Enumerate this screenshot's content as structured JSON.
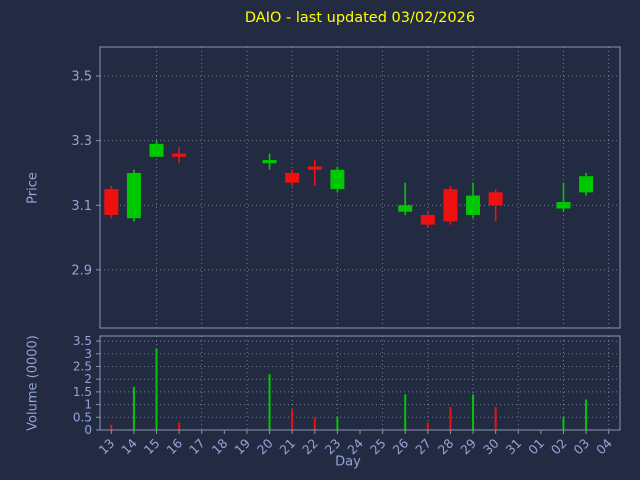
{
  "chart_data": {
    "type": "candlestick",
    "title": "DAIO - last updated 03/02/2026",
    "xlabel": "Day",
    "price_ylabel": "Price",
    "volume_ylabel": "Volume (0000)",
    "price_ylim": [
      2.72,
      3.59
    ],
    "price_ticks": [
      3.5,
      3.3,
      3.1,
      2.9
    ],
    "volume_ylim": [
      0,
      3.7
    ],
    "volume_ticks": [
      3.5,
      3,
      2.5,
      2,
      1.5,
      1,
      0.5,
      0
    ],
    "x_categories": [
      "13",
      "14",
      "15",
      "16",
      "17",
      "18",
      "19",
      "20",
      "21",
      "22",
      "23",
      "24",
      "25",
      "26",
      "27",
      "28",
      "29",
      "30",
      "31",
      "01",
      "02",
      "03",
      "04"
    ],
    "grid": "on",
    "legend_position": "none",
    "colors": {
      "background": "#232b42",
      "title": "#ffff00",
      "axis_text": "#93a4d6",
      "spine": "#8a94ad",
      "grid": "#b9c2d6",
      "up": "#00c800",
      "down": "#f01010"
    },
    "candles": [
      {
        "day": "13",
        "open": 3.15,
        "close": 3.07,
        "high": 3.16,
        "low": 3.06
      },
      {
        "day": "14",
        "open": 3.06,
        "close": 3.2,
        "high": 3.21,
        "low": 3.05
      },
      {
        "day": "15",
        "open": 3.25,
        "close": 3.29,
        "high": 3.3,
        "low": 3.25
      },
      {
        "day": "16",
        "open": 3.26,
        "close": 3.25,
        "high": 3.28,
        "low": 3.23
      },
      {
        "day": "20",
        "open": 3.23,
        "close": 3.24,
        "high": 3.26,
        "low": 3.21
      },
      {
        "day": "21",
        "open": 3.2,
        "close": 3.17,
        "high": 3.21,
        "low": 3.16
      },
      {
        "day": "22",
        "open": 3.22,
        "close": 3.21,
        "high": 3.24,
        "low": 3.16
      },
      {
        "day": "23",
        "open": 3.15,
        "close": 3.21,
        "high": 3.22,
        "low": 3.14
      },
      {
        "day": "26",
        "open": 3.08,
        "close": 3.1,
        "high": 3.17,
        "low": 3.07
      },
      {
        "day": "27",
        "open": 3.07,
        "close": 3.04,
        "high": 3.08,
        "low": 3.03
      },
      {
        "day": "28",
        "open": 3.15,
        "close": 3.05,
        "high": 3.16,
        "low": 3.04
      },
      {
        "day": "29",
        "open": 3.07,
        "close": 3.13,
        "high": 3.17,
        "low": 3.06
      },
      {
        "day": "30",
        "open": 3.14,
        "close": 3.1,
        "high": 3.15,
        "low": 3.05
      },
      {
        "day": "02",
        "open": 3.09,
        "close": 3.11,
        "high": 3.17,
        "low": 3.08
      },
      {
        "day": "03",
        "open": 3.14,
        "close": 3.19,
        "high": 3.2,
        "low": 3.13
      }
    ],
    "volumes": [
      {
        "day": "13",
        "value": 0.2,
        "direction": "down"
      },
      {
        "day": "14",
        "value": 1.7,
        "direction": "up"
      },
      {
        "day": "15",
        "value": 3.2,
        "direction": "up"
      },
      {
        "day": "16",
        "value": 0.3,
        "direction": "down"
      },
      {
        "day": "20",
        "value": 2.2,
        "direction": "up"
      },
      {
        "day": "21",
        "value": 0.8,
        "direction": "down"
      },
      {
        "day": "22",
        "value": 0.5,
        "direction": "down"
      },
      {
        "day": "23",
        "value": 0.5,
        "direction": "up"
      },
      {
        "day": "26",
        "value": 1.4,
        "direction": "up"
      },
      {
        "day": "27",
        "value": 0.3,
        "direction": "down"
      },
      {
        "day": "28",
        "value": 0.9,
        "direction": "down"
      },
      {
        "day": "29",
        "value": 1.4,
        "direction": "up"
      },
      {
        "day": "30",
        "value": 0.9,
        "direction": "down"
      },
      {
        "day": "02",
        "value": 0.5,
        "direction": "up"
      },
      {
        "day": "03",
        "value": 1.2,
        "direction": "up"
      }
    ]
  }
}
